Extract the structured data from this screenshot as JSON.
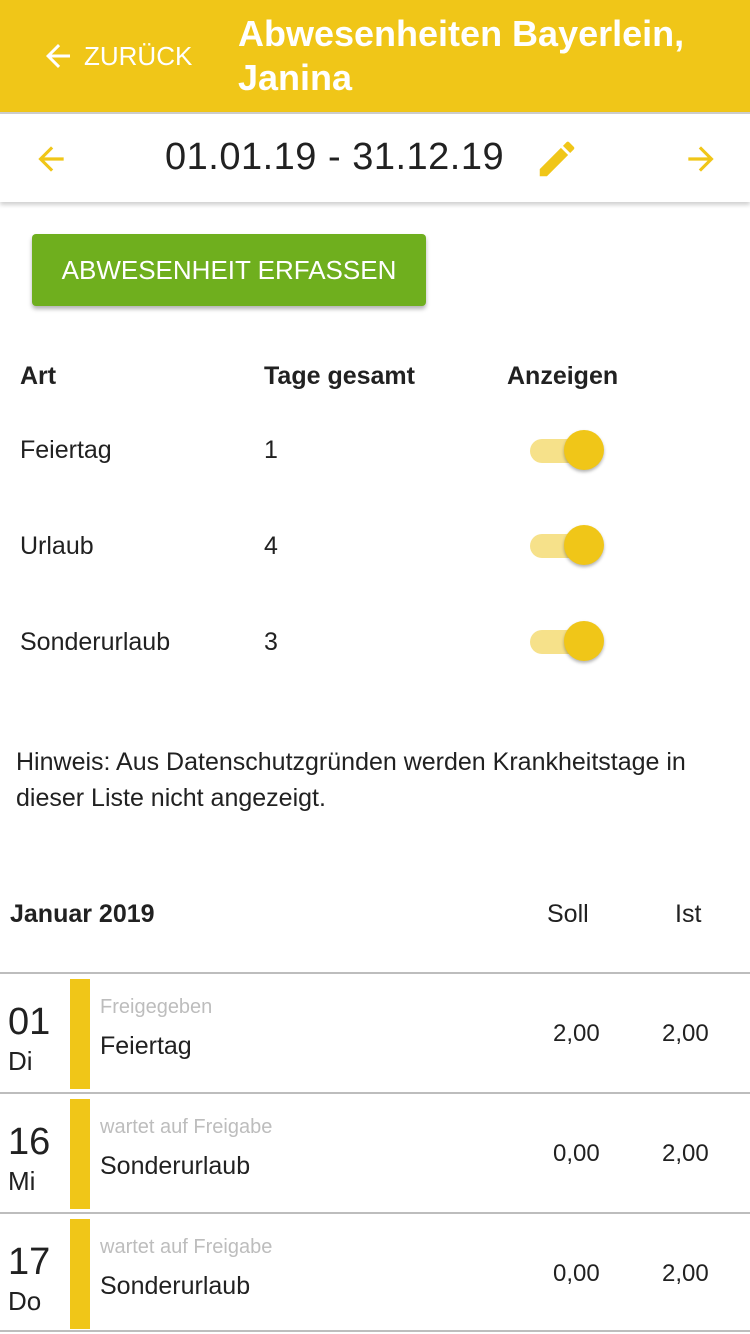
{
  "header": {
    "back_label": "ZURÜCK",
    "title": "Abwesenheiten  Bayerlein, Janina",
    "color": "#F0C618"
  },
  "datebar": {
    "range": "01.01.19 - 31.12.19"
  },
  "action": {
    "label": "ABWESENHEIT ERFASSEN",
    "color": "#6FAF1E"
  },
  "summary": {
    "headers": [
      "Art",
      "Tage gesamt",
      "Anzeigen"
    ],
    "rows": [
      {
        "art": "Feiertag",
        "tage": "1",
        "anzeigen": true
      },
      {
        "art": "Urlaub",
        "tage": "4",
        "anzeigen": true
      },
      {
        "art": "Sonderurlaub",
        "tage": "3",
        "anzeigen": true
      }
    ]
  },
  "note": "Hinweis: Aus Datenschutzgründen werden Krankheitstage in dieser Liste nicht angezeigt.",
  "month": {
    "title": "Januar 2019",
    "soll_label": "Soll",
    "ist_label": "Ist",
    "entries": [
      {
        "day": "01",
        "weekday": "Di",
        "status": "Freigegeben",
        "type": "Feiertag",
        "soll": "2,00",
        "ist": "2,00"
      },
      {
        "day": "16",
        "weekday": "Mi",
        "status": "wartet auf Freigabe",
        "type": "Sonderurlaub",
        "soll": "0,00",
        "ist": "2,00"
      },
      {
        "day": "17",
        "weekday": "Do",
        "status": "wartet auf Freigabe",
        "type": "Sonderurlaub",
        "soll": "0,00",
        "ist": "2,00"
      }
    ]
  }
}
